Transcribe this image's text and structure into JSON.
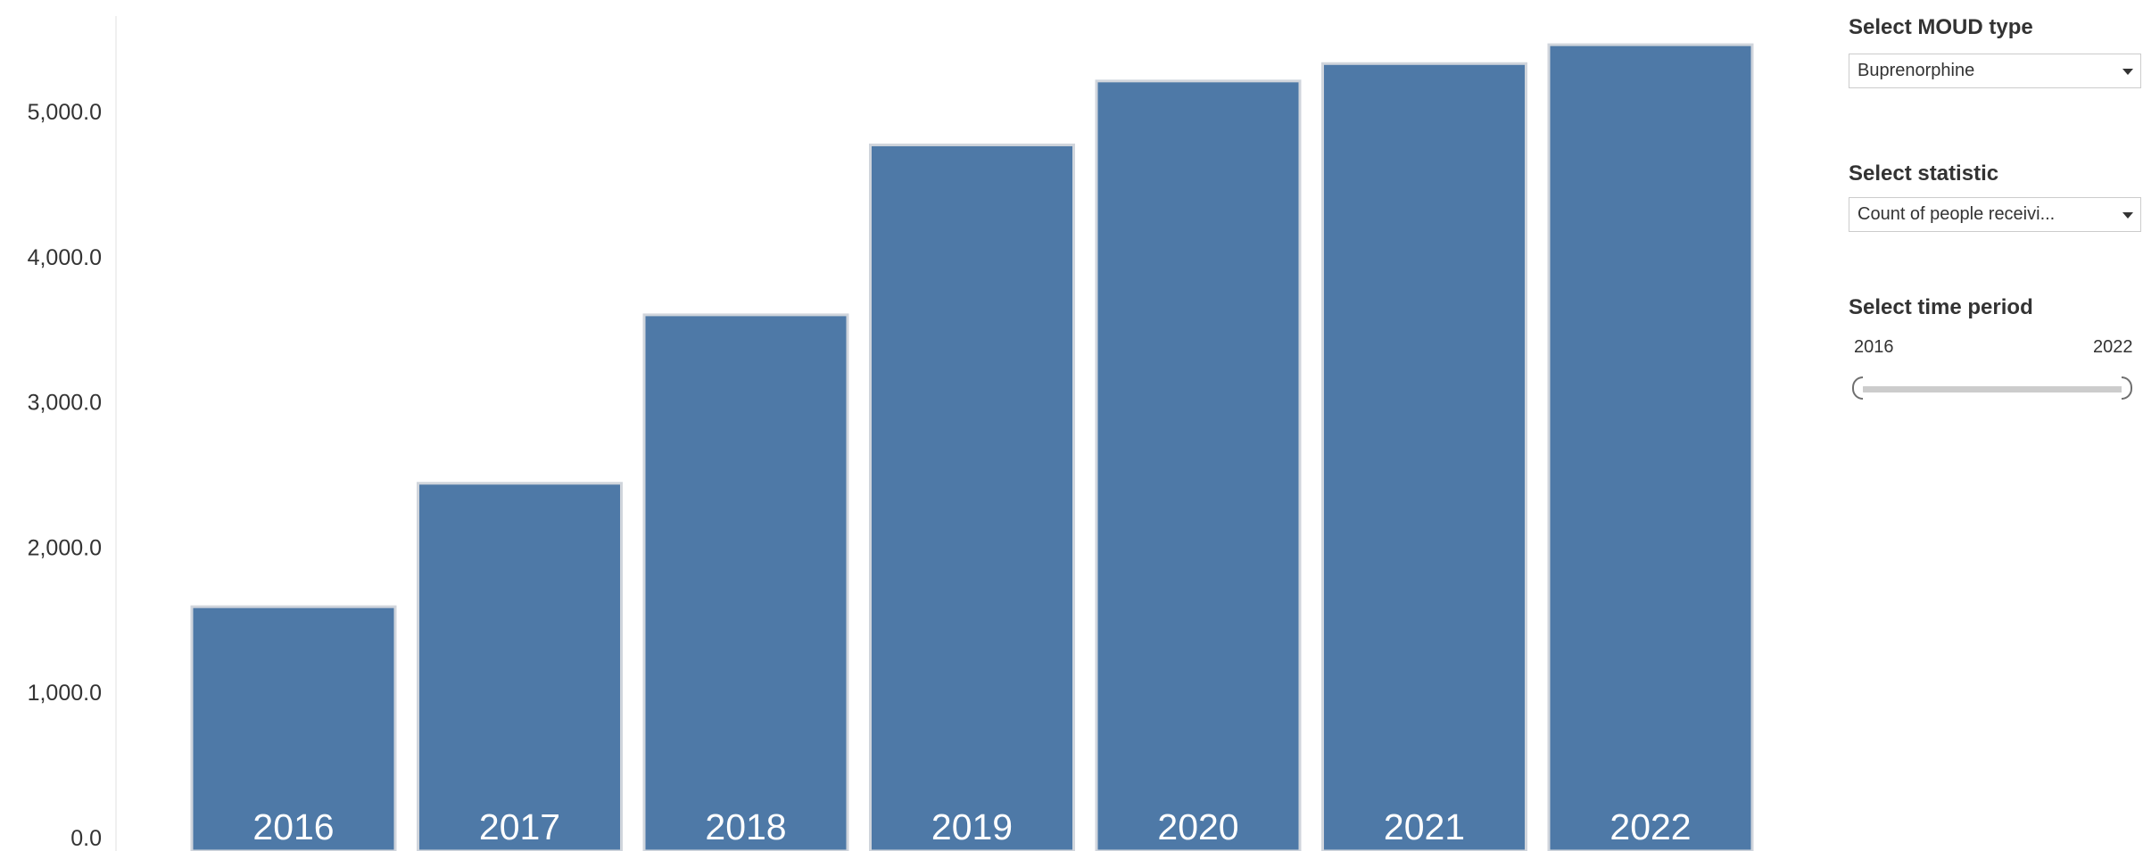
{
  "chart_data": {
    "type": "bar",
    "categories": [
      "2016",
      "2017",
      "2018",
      "2019",
      "2020",
      "2021",
      "2022"
    ],
    "values": [
      1590,
      2440,
      3600,
      4770,
      5210,
      5330,
      5460
    ],
    "ylim": [
      0,
      5750
    ],
    "yticks": [
      0,
      1000,
      2000,
      3000,
      4000,
      5000
    ],
    "ytick_labels": [
      "0.0",
      "1,000.0",
      "2,000.0",
      "3,000.0",
      "4,000.0",
      "5,000.0"
    ],
    "title": "",
    "xlabel": "",
    "ylabel": "",
    "grid": false,
    "bar_color": "#4e79a7"
  },
  "filters": {
    "moud_type": {
      "title": "Select MOUD type",
      "value": "Buprenorphine"
    },
    "statistic": {
      "title": "Select statistic",
      "value": "Count of people receivi..."
    },
    "time_period": {
      "title": "Select time period",
      "start": "2016",
      "end": "2022"
    }
  }
}
